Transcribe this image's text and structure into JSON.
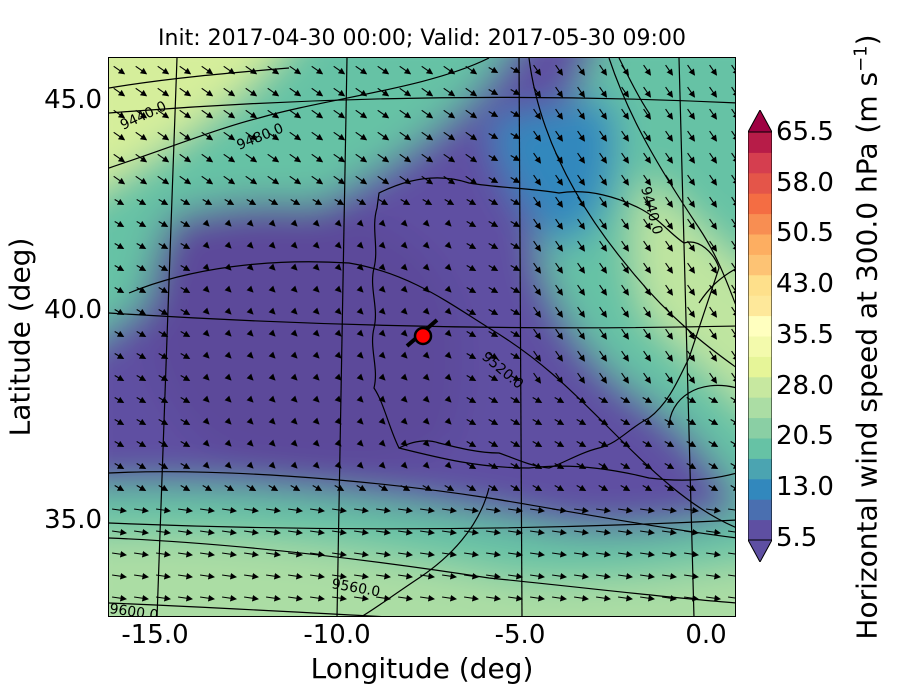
{
  "title": "Init: 2017-04-30 00:00; Valid: 2017-05-30 09:00",
  "xlabel": "Longitude (deg)",
  "ylabel": "Latitude (deg)",
  "xticks": [
    "-15.0",
    "-10.0",
    "-5.0",
    "0.0"
  ],
  "yticks": [
    "45.0",
    "40.0",
    "35.0"
  ],
  "colorbar": {
    "label_main": "Horizontal wind speed at 300.0 hPa (m s",
    "label_exp": "−1",
    "label_close": ")",
    "ticks": [
      "65.5",
      "58.0",
      "50.5",
      "43.0",
      "35.5",
      "28.0",
      "20.5",
      "13.0",
      "5.5"
    ],
    "extend": "both",
    "colormap": "Spectral_r"
  },
  "contour_labels": [
    "9440.0",
    "9480.0",
    "9440.0",
    "9520.0",
    "9560.0",
    "9600.0"
  ],
  "marker_color": "#ff0000",
  "map": {
    "lon_range": [
      -16,
      0.3
    ],
    "lat_range": [
      32.6,
      46.1
    ]
  }
}
